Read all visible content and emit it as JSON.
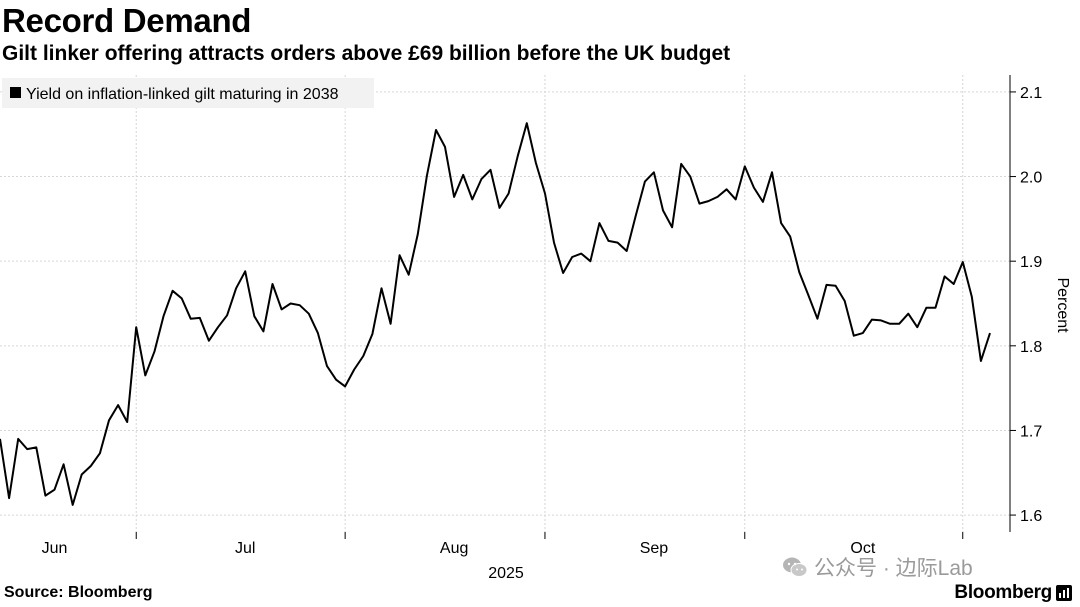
{
  "header": {
    "title": "Record Demand",
    "subtitle": "Gilt linker offering attracts orders above £69 billion before the UK budget"
  },
  "footer": {
    "source": "Source: Bloomberg",
    "brand": "Bloomberg"
  },
  "watermark": {
    "text": "公众号 · 边际Lab",
    "icon": "wechat-icon"
  },
  "colors": {
    "line": "#000000",
    "grid": "#d6d6d6",
    "legend_bg": "#f2f2f2"
  },
  "chart_data": {
    "type": "line",
    "ylabel": "Percent",
    "year_label": "2025",
    "y_axis_position": "right",
    "legend_placement": "top-left",
    "grid": true,
    "ylim": [
      1.58,
      2.12
    ],
    "yticks": [
      "1.6",
      "1.7",
      "1.8",
      "1.9",
      "2.0",
      "2.1"
    ],
    "month_ticks": [
      {
        "label": "Jun",
        "index": 6
      },
      {
        "label": "Jul",
        "index": 27
      },
      {
        "label": "Aug",
        "index": 50
      },
      {
        "label": "Sep",
        "index": 72
      },
      {
        "label": "Oct",
        "index": 95
      }
    ],
    "month_boundaries": [
      15,
      38,
      60,
      82,
      106
    ],
    "series": [
      {
        "name": "Yield on inflation-linked gilt maturing in 2038",
        "values": [
          1.69,
          1.62,
          1.69,
          1.678,
          1.68,
          1.623,
          1.63,
          1.66,
          1.612,
          1.648,
          1.658,
          1.673,
          1.712,
          1.73,
          1.71,
          1.822,
          1.765,
          1.793,
          1.835,
          1.865,
          1.856,
          1.832,
          1.833,
          1.806,
          1.822,
          1.836,
          1.868,
          1.888,
          1.835,
          1.817,
          1.873,
          1.843,
          1.85,
          1.848,
          1.838,
          1.815,
          1.776,
          1.76,
          1.752,
          1.772,
          1.788,
          1.814,
          1.868,
          1.826,
          1.907,
          1.884,
          1.932,
          2.001,
          2.055,
          2.035,
          1.976,
          2.002,
          1.973,
          1.997,
          2.008,
          1.963,
          1.98,
          2.024,
          2.063,
          2.016,
          1.98,
          1.922,
          1.886,
          1.905,
          1.909,
          1.9,
          1.945,
          1.924,
          1.922,
          1.912,
          1.954,
          1.994,
          2.005,
          1.96,
          1.94,
          2.015,
          2.0,
          1.968,
          1.971,
          1.976,
          1.985,
          1.973,
          2.012,
          1.987,
          1.97,
          2.005,
          1.945,
          1.929,
          1.887,
          1.86,
          1.832,
          1.872,
          1.871,
          1.853,
          1.812,
          1.815,
          1.831,
          1.83,
          1.826,
          1.826,
          1.838,
          1.822,
          1.845,
          1.845,
          1.882,
          1.873,
          1.899,
          1.858,
          1.782,
          1.815
        ]
      }
    ]
  }
}
